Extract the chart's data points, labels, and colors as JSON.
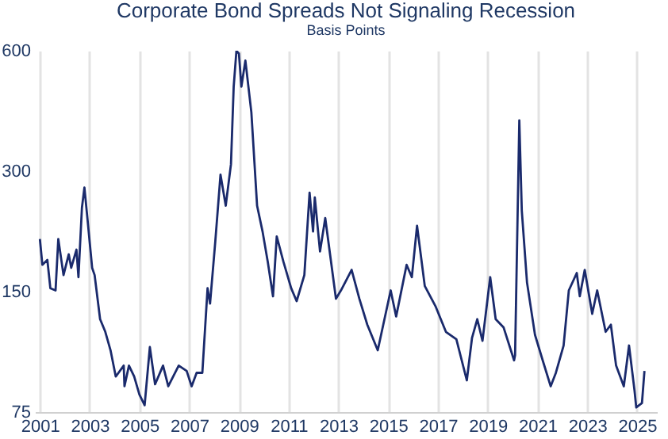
{
  "chart_data": {
    "type": "line",
    "title": "Corporate Bond Spreads Not Signaling Recession",
    "subtitle": "Basis Points",
    "log": "y",
    "grid": "x",
    "line_style": "solid",
    "marker": "none",
    "xlim": [
      2000.8,
      2025.8
    ],
    "xticks": [
      2001,
      2003,
      2005,
      2007,
      2009,
      2011,
      2013,
      2015,
      2017,
      2019,
      2021,
      2023,
      2025
    ],
    "ylim": [
      75,
      600
    ],
    "yticks": [
      75,
      150,
      300,
      600
    ],
    "series": [
      {
        "color": "#1a2a6c",
        "x": [
          2001.0,
          2001.1,
          2001.3,
          2001.42,
          2001.63,
          2001.74,
          2001.95,
          2002.16,
          2002.26,
          2002.47,
          2002.55,
          2002.69,
          2002.79,
          2002.94,
          2003.1,
          2003.2,
          2003.42,
          2003.63,
          2003.84,
          2004.05,
          2004.37,
          2004.4,
          2004.58,
          2004.79,
          2005.0,
          2005.21,
          2005.42,
          2005.63,
          2005.95,
          2006.16,
          2006.58,
          2006.9,
          2007.1,
          2007.3,
          2007.53,
          2007.74,
          2007.84,
          2008.05,
          2008.26,
          2008.47,
          2008.68,
          2008.79,
          2008.9,
          2009.0,
          2009.1,
          2009.26,
          2009.5,
          2009.73,
          2009.95,
          2010.16,
          2010.37,
          2010.52,
          2010.79,
          2011.1,
          2011.32,
          2011.63,
          2011.84,
          2011.98,
          2012.05,
          2012.26,
          2012.47,
          2012.9,
          2013.1,
          2013.53,
          2013.84,
          2014.16,
          2014.58,
          2015.1,
          2015.32,
          2015.74,
          2015.95,
          2016.16,
          2016.47,
          2016.9,
          2017.32,
          2017.74,
          2018.16,
          2018.37,
          2018.58,
          2018.79,
          2019.1,
          2019.32,
          2019.64,
          2020.06,
          2020.1,
          2020.27,
          2020.37,
          2020.58,
          2020.9,
          2021.21,
          2021.53,
          2021.74,
          2022.05,
          2022.26,
          2022.58,
          2022.7,
          2022.9,
          2023.2,
          2023.4,
          2023.74,
          2023.95,
          2024.16,
          2024.47,
          2024.68,
          2024.9,
          2024.97,
          2025.2,
          2025.3
        ],
        "values": [
          203,
          175,
          180,
          153,
          151,
          203,
          165,
          186,
          172,
          191,
          163,
          243,
          273,
          219,
          172,
          165,
          128,
          119,
          107,
          92,
          98,
          87,
          98,
          92,
          83,
          78,
          109,
          88,
          98,
          87,
          98,
          95,
          87,
          94,
          94,
          153,
          140,
          200,
          294,
          246,
          312,
          488,
          600,
          590,
          488,
          567,
          421,
          246,
          212,
          178,
          146,
          206,
          178,
          153,
          142,
          165,
          265,
          212,
          258,
          189,
          229,
          144,
          151,
          170,
          144,
          124,
          107,
          151,
          130,
          175,
          163,
          219,
          155,
          138,
          119,
          114,
          90,
          115,
          128,
          113,
          163,
          128,
          122,
          101,
          104,
          402,
          239,
          158,
          117,
          101,
          87,
          94,
          110,
          151,
          167,
          146,
          170,
          132,
          151,
          119,
          124,
          98,
          87,
          110,
          85,
          77,
          79,
          95
        ]
      }
    ]
  }
}
